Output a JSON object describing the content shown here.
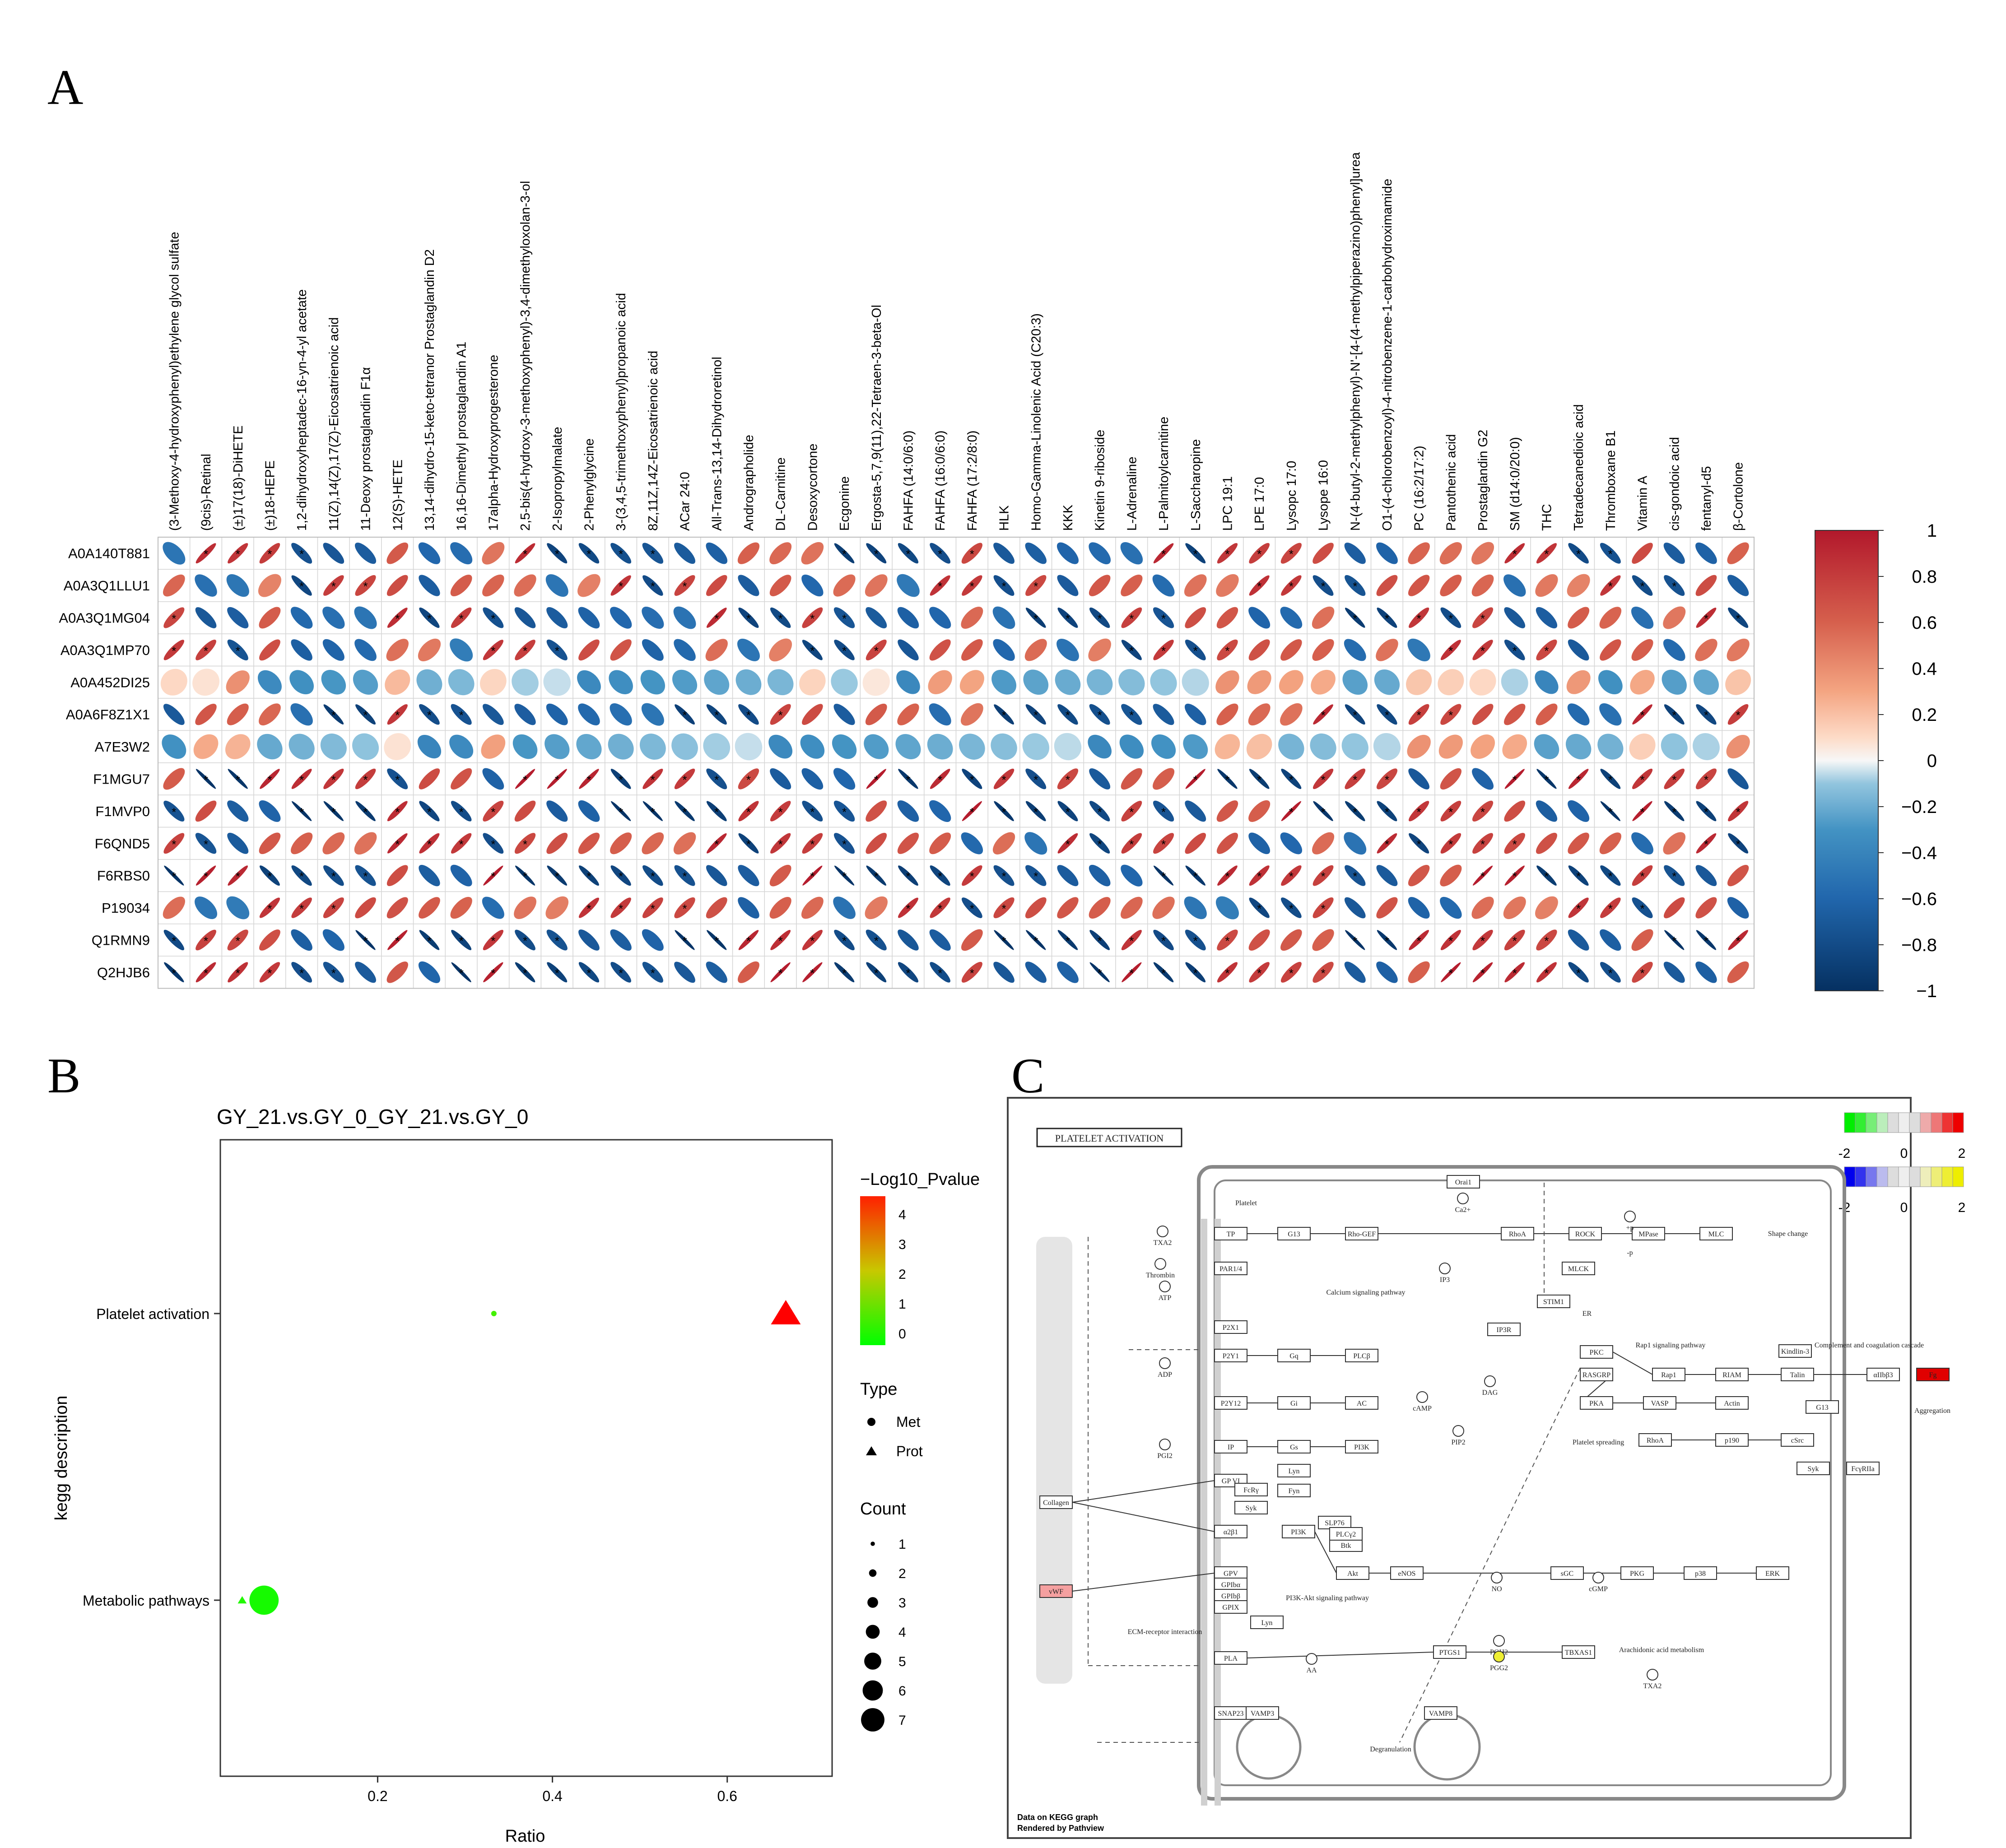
{
  "panels": {
    "a": "A",
    "b": "B",
    "c": "C"
  },
  "chart_data": [
    {
      "type": "heatmap",
      "panel": "A",
      "x": [
        "(3-Methoxy-4-hydroxyphenyl)ethylene glycol sulfate",
        "(9cis)-Retinal",
        "(±)17(18)-DiHETE",
        "(±)18-HEPE",
        "1,2-dihydroxyheptadec-16-yn-4-yl acetate",
        "11(Z),14(Z),17(Z)-Eicosatrienoic acid",
        "11-Deoxy prostaglandin F1α",
        "12(S)-HETE",
        "13,14-dihydro-15-keto-tetranor Prostaglandin D2",
        "16,16-Dimethyl prostaglandin A1",
        "17alpha-Hydroxyprogesterone",
        "2,5-bis(4-hydroxy-3-methoxyphenyl)-3,4-dimethyloxolan-3-ol",
        "2-Isopropylmalate",
        "2-Phenylglycine",
        "3-(3,4,5-trimethoxyphenyl)propanoic acid",
        "8Z,11Z,14Z-Eicosatrienoic acid",
        "ACar 24:0",
        "All-Trans-13,14-Dihydroretinol",
        "Andrographolide",
        "DL-Carnitine",
        "Desoxycortone",
        "Ecgonine",
        "Ergosta-5,7,9(11),22-Tetraen-3-beta-Ol",
        "FAHFA (14:0/6:0)",
        "FAHFA (16:0/6:0)",
        "FAHFA (17:2/8:0)",
        "HLK",
        "Homo-Gamma-Linolenic Acid (C20:3)",
        "KKK",
        "Kinetin 9-riboside",
        "L-Adrenaline",
        "L-Palmitoylcarnitine",
        "L-Saccharopine",
        "LPC 19:1",
        "LPE 17:0",
        "Lysopc 17:0",
        "Lysope 16:0",
        "N-(4-butyl-2-methylphenyl)-N'-[4-(4-methylpiperazino)phenyl]urea",
        "O1-(4-chlorobenzoyl)-4-nitrobenzene-1-carbohydroximamide",
        "PC (16:2/17:2)",
        "Pantothenic acid",
        "Prostaglandin G2",
        "SM (d14:0/20:0)",
        "THC",
        "Tetradecanedioic acid",
        "Thromboxane B1",
        "Vitamin A",
        "cis-gondoic acid",
        "fentanyl-d5",
        "β-Cortolone"
      ],
      "y": [
        "A0A140T881",
        "A0A3Q1LLU1",
        "A0A3Q1MG04",
        "A0A3Q1MP70",
        "A0A452DI25",
        "A0A6F8Z1X1",
        "A7E3W2",
        "F1MGU7",
        "F1MVP0",
        "F6QND5",
        "F6RBS0",
        "P19034",
        "Q1RMN9",
        "Q2HJB6"
      ],
      "base": [
        -0.5,
        0.45,
        -0.5,
        0.45,
        -0.25,
        0.5,
        -0.15,
        0.6,
        -0.6,
        0.5,
        -0.6,
        0.45,
        -0.6,
        0.6
      ],
      "signs": [
        [
          -1,
          1,
          1,
          1,
          -1,
          -1,
          -1,
          1,
          -1,
          -1,
          1,
          1,
          -1,
          -1,
          -1,
          -1,
          -1,
          -1,
          1,
          1,
          1,
          -1,
          -1,
          -1,
          -1,
          1,
          -1,
          -1,
          -1,
          -1,
          -1,
          1,
          -1,
          1,
          1,
          1,
          1,
          -1,
          -1,
          1,
          1,
          1,
          1,
          1,
          -1,
          -1,
          1,
          -1,
          -1,
          1
        ],
        [
          1,
          -1,
          -1,
          1,
          -1,
          1,
          1,
          1,
          -1,
          1,
          1,
          1,
          -1,
          1,
          1,
          -1,
          1,
          1,
          -1,
          1,
          -1,
          1,
          1,
          -1,
          1,
          1,
          -1,
          1,
          -1,
          1,
          1,
          -1,
          1,
          1,
          1,
          1,
          -1,
          -1,
          1,
          1,
          1,
          1,
          -1,
          1,
          1,
          1,
          -1,
          -1,
          1,
          -1
        ],
        [
          1,
          -1,
          -1,
          1,
          -1,
          -1,
          -1,
          1,
          -1,
          1,
          -1,
          -1,
          -1,
          -1,
          -1,
          -1,
          -1,
          1,
          -1,
          -1,
          1,
          -1,
          -1,
          -1,
          -1,
          1,
          -1,
          -1,
          -1,
          -1,
          1,
          -1,
          1,
          1,
          -1,
          -1,
          1,
          -1,
          -1,
          1,
          -1,
          1,
          -1,
          -1,
          1,
          1,
          -1,
          1,
          1,
          -1
        ],
        [
          1,
          1,
          -1,
          1,
          -1,
          -1,
          -1,
          1,
          1,
          -1,
          1,
          1,
          -1,
          1,
          1,
          -1,
          -1,
          1,
          -1,
          1,
          -1,
          -1,
          1,
          -1,
          1,
          1,
          -1,
          1,
          -1,
          1,
          -1,
          1,
          -1,
          1,
          1,
          1,
          1,
          -1,
          1,
          -1,
          1,
          1,
          -1,
          1,
          -1,
          1,
          1,
          -1,
          1,
          1
        ],
        [
          1,
          1,
          1,
          -1,
          -1,
          -1,
          -1,
          1,
          -1,
          -1,
          1,
          -1,
          -1,
          -1,
          -1,
          -1,
          -1,
          -1,
          -1,
          -1,
          1,
          -1,
          1,
          -1,
          1,
          1,
          -1,
          -1,
          -1,
          -1,
          -1,
          -1,
          -1,
          1,
          1,
          1,
          1,
          -1,
          -1,
          1,
          1,
          1,
          -1,
          -1,
          1,
          -1,
          1,
          -1,
          -1,
          1
        ],
        [
          -1,
          1,
          1,
          1,
          -1,
          -1,
          -1,
          1,
          -1,
          -1,
          -1,
          -1,
          -1,
          -1,
          -1,
          -1,
          -1,
          -1,
          -1,
          1,
          1,
          -1,
          1,
          1,
          -1,
          1,
          -1,
          -1,
          -1,
          -1,
          -1,
          -1,
          -1,
          1,
          1,
          1,
          1,
          -1,
          -1,
          1,
          1,
          1,
          1,
          1,
          -1,
          -1,
          1,
          -1,
          -1,
          1
        ],
        [
          -1,
          1,
          1,
          -1,
          -1,
          -1,
          -1,
          1,
          -1,
          -1,
          1,
          -1,
          -1,
          -1,
          -1,
          -1,
          -1,
          -1,
          -1,
          -1,
          -1,
          -1,
          -1,
          -1,
          -1,
          -1,
          -1,
          -1,
          -1,
          -1,
          -1,
          -1,
          -1,
          1,
          1,
          -1,
          -1,
          -1,
          -1,
          1,
          1,
          1,
          1,
          -1,
          -1,
          -1,
          1,
          -1,
          -1,
          1
        ],
        [
          1,
          -1,
          -1,
          1,
          1,
          1,
          1,
          -1,
          1,
          1,
          -1,
          1,
          1,
          1,
          -1,
          1,
          1,
          -1,
          1,
          -1,
          -1,
          -1,
          1,
          -1,
          1,
          -1,
          1,
          -1,
          1,
          -1,
          1,
          1,
          1,
          -1,
          -1,
          -1,
          1,
          1,
          1,
          -1,
          1,
          -1,
          1,
          -1,
          1,
          -1,
          1,
          1,
          1,
          -1
        ],
        [
          -1,
          1,
          -1,
          -1,
          -1,
          -1,
          -1,
          1,
          -1,
          -1,
          1,
          1,
          -1,
          -1,
          -1,
          -1,
          -1,
          -1,
          1,
          1,
          -1,
          -1,
          1,
          -1,
          -1,
          1,
          -1,
          -1,
          -1,
          -1,
          1,
          -1,
          -1,
          1,
          1,
          1,
          -1,
          -1,
          -1,
          1,
          1,
          1,
          1,
          -1,
          -1,
          -1,
          1,
          -1,
          -1,
          1
        ],
        [
          1,
          -1,
          -1,
          1,
          1,
          1,
          1,
          1,
          1,
          1,
          -1,
          1,
          1,
          1,
          1,
          1,
          1,
          1,
          -1,
          1,
          1,
          -1,
          1,
          1,
          1,
          -1,
          1,
          -1,
          1,
          -1,
          1,
          1,
          1,
          1,
          -1,
          -1,
          1,
          -1,
          1,
          -1,
          1,
          1,
          1,
          1,
          1,
          1,
          -1,
          1,
          1,
          -1
        ],
        [
          -1,
          1,
          1,
          -1,
          -1,
          -1,
          -1,
          1,
          -1,
          -1,
          1,
          -1,
          -1,
          -1,
          -1,
          -1,
          -1,
          -1,
          -1,
          1,
          1,
          -1,
          -1,
          -1,
          -1,
          1,
          -1,
          -1,
          -1,
          -1,
          -1,
          -1,
          -1,
          1,
          1,
          1,
          1,
          -1,
          -1,
          1,
          1,
          1,
          1,
          -1,
          -1,
          -1,
          1,
          -1,
          -1,
          1
        ],
        [
          1,
          -1,
          -1,
          1,
          1,
          1,
          1,
          1,
          1,
          1,
          -1,
          1,
          1,
          1,
          1,
          1,
          1,
          1,
          -1,
          1,
          1,
          -1,
          1,
          1,
          1,
          -1,
          1,
          1,
          1,
          1,
          1,
          1,
          -1,
          -1,
          -1,
          -1,
          1,
          -1,
          1,
          -1,
          -1,
          1,
          1,
          1,
          1,
          1,
          -1,
          1,
          1,
          -1
        ],
        [
          -1,
          1,
          1,
          1,
          -1,
          -1,
          -1,
          1,
          -1,
          -1,
          1,
          -1,
          -1,
          -1,
          -1,
          -1,
          -1,
          -1,
          1,
          1,
          1,
          -1,
          -1,
          -1,
          -1,
          1,
          -1,
          -1,
          -1,
          -1,
          1,
          -1,
          -1,
          1,
          1,
          1,
          1,
          -1,
          -1,
          1,
          1,
          1,
          1,
          1,
          -1,
          -1,
          1,
          -1,
          -1,
          1
        ],
        [
          -1,
          1,
          1,
          1,
          -1,
          -1,
          -1,
          1,
          -1,
          -1,
          1,
          -1,
          -1,
          -1,
          -1,
          -1,
          -1,
          -1,
          1,
          1,
          1,
          -1,
          -1,
          -1,
          -1,
          1,
          -1,
          -1,
          -1,
          -1,
          1,
          -1,
          -1,
          1,
          1,
          1,
          1,
          -1,
          -1,
          1,
          1,
          1,
          1,
          1,
          -1,
          -1,
          1,
          -1,
          -1,
          1
        ]
      ],
      "colorbar_ticks": [
        "1",
        "0.8",
        "0.6",
        "0.4",
        "0.2",
        "0",
        "−0.2",
        "−0.4",
        "−0.6",
        "−0.8",
        "−1"
      ],
      "color_range": [
        -1,
        1
      ],
      "significance_mark": "*"
    },
    {
      "type": "scatter",
      "panel": "B",
      "title": "GY_21.vs.GY_0_GY_21.vs.GY_0",
      "xlabel": "Ratio",
      "ylabel": "kegg description",
      "categories": [
        "Platelet activation",
        "Metabolic pathways"
      ],
      "x_ticks": [
        "0.2",
        "0.4",
        "0.6"
      ],
      "xlim": [
        0.02,
        0.72
      ],
      "points": [
        {
          "category": "Platelet activation",
          "x": 0.333,
          "type": "Met",
          "count": 1,
          "neg_log10_p": 0.6
        },
        {
          "category": "Platelet activation",
          "x": 0.667,
          "type": "Prot",
          "count": 1,
          "neg_log10_p": 4.6
        },
        {
          "category": "Metabolic pathways",
          "x": 0.045,
          "type": "Prot",
          "count": 1,
          "neg_log10_p": 0.3
        },
        {
          "category": "Metabolic pathways",
          "x": 0.07,
          "type": "Met",
          "count": 7,
          "neg_log10_p": 0.2
        }
      ],
      "legend": {
        "color_title": "−Log10_Pvalue",
        "color_ticks": [
          "4",
          "3",
          "2",
          "1",
          "0"
        ],
        "type_title": "Type",
        "types": [
          "Met",
          "Prot"
        ],
        "count_title": "Count",
        "counts": [
          "1",
          "2",
          "3",
          "4",
          "5",
          "6",
          "7"
        ]
      }
    }
  ],
  "kegg": {
    "title": "PLATELET ACTIVATION",
    "scale1": [
      "-2",
      "0",
      "2"
    ],
    "scale2": [
      "-2",
      "0",
      "2"
    ],
    "footer1": "Data on KEGG graph",
    "footer2": "Rendered by Pathview",
    "boxes": [
      "TP",
      "G13",
      "Rho-GEF",
      "RhoA",
      "ROCK",
      "MPase",
      "MLC",
      "PAR1/4",
      "MLCK",
      "P2X1",
      "STIM1",
      "Orai1",
      "P2Y1",
      "Gq",
      "PLCβ",
      "IP3R",
      "PKC",
      "Rap1",
      "RIAM",
      "Talin",
      "Kindlin-3",
      "αIIbβ3",
      "P2Y12",
      "Gi",
      "AC",
      "RASGRP",
      "PKA",
      "VASP",
      "Actin",
      "G13",
      "IP",
      "Gs",
      "PI3K",
      "RhoA",
      "p190",
      "cSrc",
      "Syk",
      "FcγRIIa",
      "Lyn",
      "GP VI",
      "FcRγ",
      "Fyn",
      "Syk",
      "SLP76",
      "Btk",
      "PLCγ2",
      "α2β1",
      "PI3K",
      "Akt",
      "eNOS",
      "sGC",
      "PKG",
      "p38",
      "ERK",
      "GPV",
      "GPIbα",
      "GPIbβ",
      "GPIX",
      "Lyn",
      "PLA",
      "PTGS1",
      "TBXAS1",
      "SNAP23",
      "VAMP3",
      "VAMP8",
      "Collagen",
      "vWF",
      "Fg"
    ],
    "labels": [
      "Shape change",
      "Platelet",
      "Calcium signaling pathway",
      "ER",
      "Rap1 signaling pathway",
      "Complement and coagulation cascade",
      "Aggregation",
      "Platelet spreading",
      "PI3K-Akt signaling pathway",
      "ECM-receptor interaction",
      "Arachidonic acid metabolism",
      "Degranulation",
      "TXA2",
      "Thrombin",
      "ATP",
      "ADP",
      "PGI2",
      "cAMP",
      "DAG",
      "IP3",
      "PIP2",
      "NO",
      "cGMP",
      "AA",
      "PGH2",
      "PGG2",
      "TXA2",
      "Ca2+",
      "+p",
      "-p"
    ]
  }
}
